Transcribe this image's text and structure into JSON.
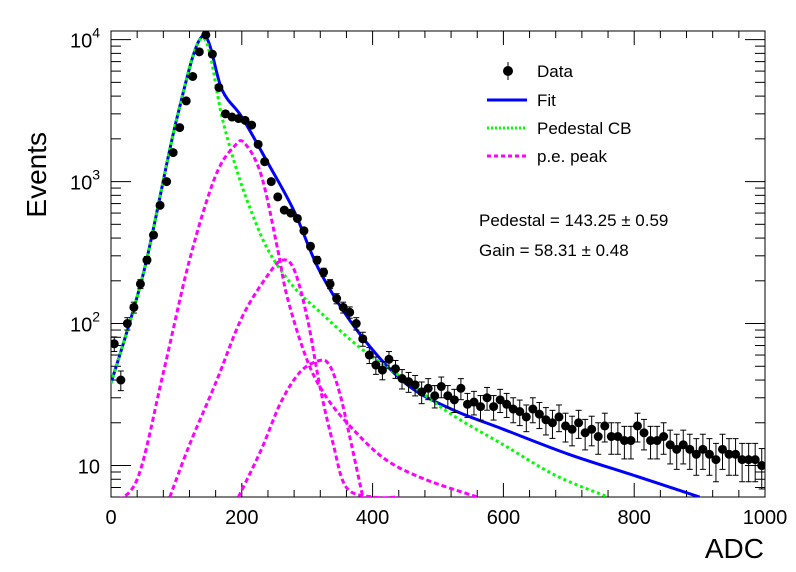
{
  "chart_data": {
    "type": "scatter",
    "xlabel": "ADC",
    "ylabel": "Events",
    "xlim": [
      0,
      1000
    ],
    "ylim": [
      6,
      11500
    ],
    "y_scale": "log",
    "x_ticks": [
      0,
      200,
      400,
      600,
      800,
      1000
    ],
    "y_ticks": [
      {
        "value": 10,
        "base": "10",
        "exp": ""
      },
      {
        "value": 100,
        "base": "10",
        "exp": "2"
      },
      {
        "value": 1000,
        "base": "10",
        "exp": "3"
      },
      {
        "value": 10000,
        "base": "10",
        "exp": "4"
      }
    ],
    "legend": {
      "position": "top-right",
      "entries": [
        {
          "label": "Data",
          "style": "marker",
          "color": "#000000"
        },
        {
          "label": "Fit",
          "style": "line",
          "color": "#0000ff"
        },
        {
          "label": "Pedestal CB",
          "style": "dotted",
          "color": "#00ff00"
        },
        {
          "label": "p.e. peak",
          "style": "dashed",
          "color": "#ff00ff"
        }
      ]
    },
    "annotations": [
      "Pedestal = 143.25 ± 0.59",
      "Gain = 58.31 ± 0.48"
    ],
    "series": [
      {
        "name": "Data",
        "color": "#000000",
        "x": [
          5,
          15,
          25,
          35,
          45,
          55,
          65,
          75,
          85,
          95,
          105,
          115,
          125,
          135,
          145,
          155,
          165,
          175,
          185,
          195,
          205,
          215,
          225,
          235,
          245,
          255,
          265,
          275,
          285,
          295,
          305,
          315,
          325,
          335,
          345,
          355,
          365,
          375,
          385,
          395,
          405,
          415,
          425,
          435,
          445,
          455,
          465,
          475,
          485,
          495,
          505,
          515,
          525,
          535,
          545,
          555,
          565,
          575,
          585,
          595,
          605,
          615,
          625,
          635,
          645,
          655,
          665,
          675,
          685,
          695,
          705,
          715,
          725,
          735,
          745,
          755,
          765,
          775,
          785,
          795,
          805,
          815,
          825,
          835,
          845,
          855,
          865,
          875,
          885,
          895,
          905,
          915,
          925,
          935,
          945,
          955,
          965,
          975,
          985,
          995
        ],
        "y": [
          72,
          40,
          100,
          130,
          190,
          280,
          420,
          680,
          1000,
          1600,
          2400,
          3700,
          5500,
          8200,
          10800,
          7900,
          4600,
          3000,
          2850,
          2780,
          2700,
          2500,
          1830,
          1380,
          1000,
          780,
          630,
          600,
          550,
          450,
          350,
          280,
          230,
          190,
          150,
          130,
          120,
          100,
          78,
          60,
          51,
          47,
          56,
          48,
          41,
          39,
          37,
          33,
          35,
          31,
          36,
          31,
          29,
          35,
          27,
          28,
          26,
          30,
          26,
          29,
          27,
          25,
          24,
          22,
          25,
          23,
          21,
          20,
          22,
          19,
          18,
          20,
          17,
          18,
          16,
          19,
          16,
          16,
          15,
          15,
          19,
          17,
          15,
          15,
          16,
          14,
          13,
          14,
          13,
          12,
          13,
          12,
          11,
          13,
          12,
          12,
          11,
          11,
          11,
          10
        ]
      },
      {
        "name": "Fit",
        "color": "#0000ff",
        "x": [
          0,
          50,
          100,
          140,
          170,
          200,
          240,
          280,
          320,
          380,
          450,
          520,
          600,
          700,
          800,
          900
        ],
        "y": [
          38,
          230,
          2700,
          10600,
          4400,
          2850,
          1350,
          620,
          230,
          85,
          38,
          25,
          18,
          12,
          8.5,
          6
        ]
      },
      {
        "name": "Pedestal CB",
        "color": "#00ff00",
        "x": [
          0,
          50,
          100,
          140,
          170,
          190,
          210,
          240,
          280,
          320,
          380,
          450,
          520,
          600,
          680,
          760
        ],
        "y": [
          38,
          230,
          2700,
          10300,
          2800,
          1300,
          700,
          330,
          180,
          120,
          68,
          40,
          23,
          14,
          8.5,
          6
        ]
      },
      {
        "name": "p.e. peak 1",
        "color": "#ff00ff",
        "x": [
          0,
          40,
          80,
          120,
          160,
          190,
          205,
          230,
          255,
          270,
          300,
          330,
          370,
          420,
          480,
          560
        ],
        "y": [
          5.5,
          8,
          45,
          280,
          1100,
          1800,
          1850,
          1100,
          330,
          150,
          55,
          30,
          18,
          11,
          8,
          6
        ]
      },
      {
        "name": "p.e. peak 2",
        "color": "#ff00ff",
        "x": [
          90,
          120,
          160,
          200,
          240,
          262,
          280,
          300,
          320,
          340,
          360,
          400,
          440
        ],
        "y": [
          6,
          14,
          38,
          110,
          220,
          280,
          240,
          110,
          35,
          14,
          7,
          6,
          6
        ]
      },
      {
        "name": "p.e. peak 3",
        "color": "#ff00ff",
        "x": [
          195,
          230,
          260,
          290,
          320,
          335,
          350,
          365,
          385
        ],
        "y": [
          6,
          13,
          28,
          46,
          55,
          50,
          32,
          16,
          6
        ]
      }
    ]
  }
}
